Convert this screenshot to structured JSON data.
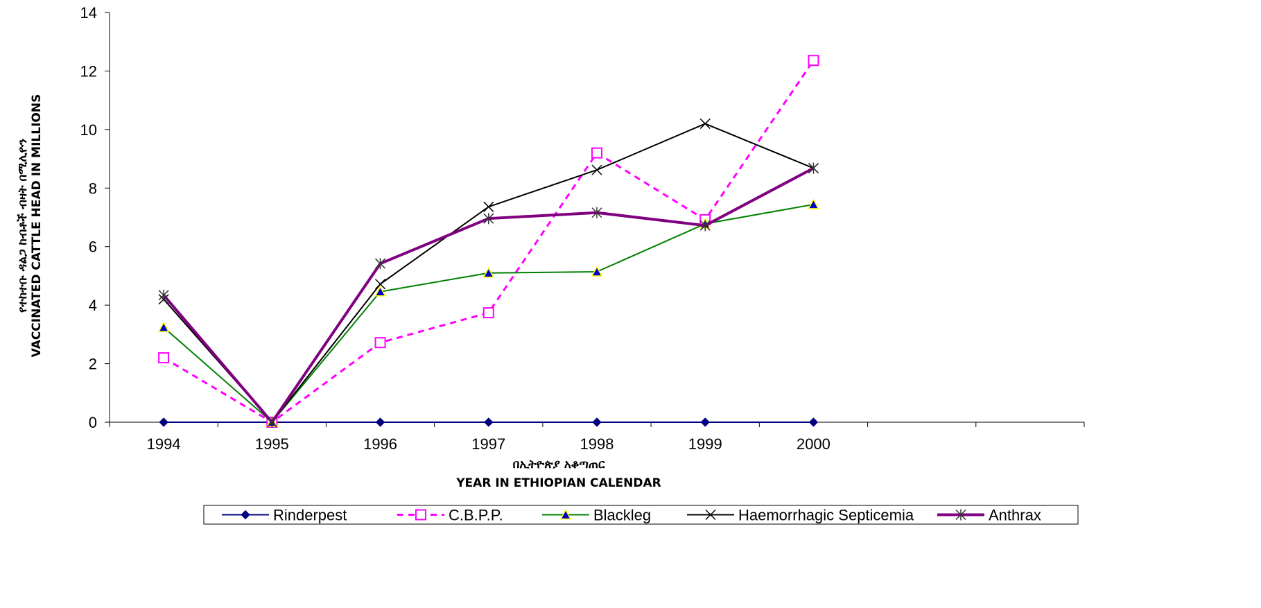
{
  "chart_data": {
    "type": "line",
    "categories": [
      "1994",
      "1995",
      "1996",
      "1997",
      "1998",
      "1999",
      "2000"
    ],
    "extra_category_slots": 2,
    "ylim": [
      0,
      14
    ],
    "yticks": [
      0,
      2,
      4,
      6,
      8,
      10,
      12,
      14
    ],
    "xlabel_lines": [
      "በኢትዮጵያ አቆጣጠር",
      "YEAR IN ETHIOPIAN CALENDAR"
    ],
    "ylabel_lines": [
      "የተከተቡ ዳልጋ ከብቶች ብዛት በሚሊዮን",
      "VACCINATED CATTLE HEAD IN MILLIONS"
    ],
    "grid": false,
    "legend_position": "bottom",
    "series": [
      {
        "name": "Rinderpest",
        "values": [
          0,
          0,
          0,
          0,
          0,
          0,
          0
        ],
        "color": "#000080",
        "marker": "diamond",
        "dash": "solid",
        "width": 2
      },
      {
        "name": "C.B.P.P.",
        "values": [
          2.2,
          0,
          2.72,
          3.74,
          9.2,
          6.92,
          12.36
        ],
        "color": "#ff00ff",
        "marker": "square-open",
        "dash": "dashed",
        "width": 3
      },
      {
        "name": "Blackleg",
        "values": [
          3.24,
          0,
          4.46,
          5.1,
          5.14,
          6.78,
          7.44
        ],
        "color": "#008000",
        "marker": "triangle",
        "dash": "solid",
        "width": 2
      },
      {
        "name": "Haemorrhagic Septicemia",
        "values": [
          4.2,
          0,
          4.72,
          7.36,
          8.62,
          10.2,
          8.68
        ],
        "color": "#000000",
        "marker": "x",
        "dash": "solid",
        "width": 2
      },
      {
        "name": "Anthrax",
        "values": [
          4.34,
          0,
          5.42,
          6.96,
          7.16,
          6.72,
          8.68
        ],
        "color": "#800080",
        "marker": "asterisk",
        "dash": "solid",
        "width": 4
      }
    ]
  }
}
